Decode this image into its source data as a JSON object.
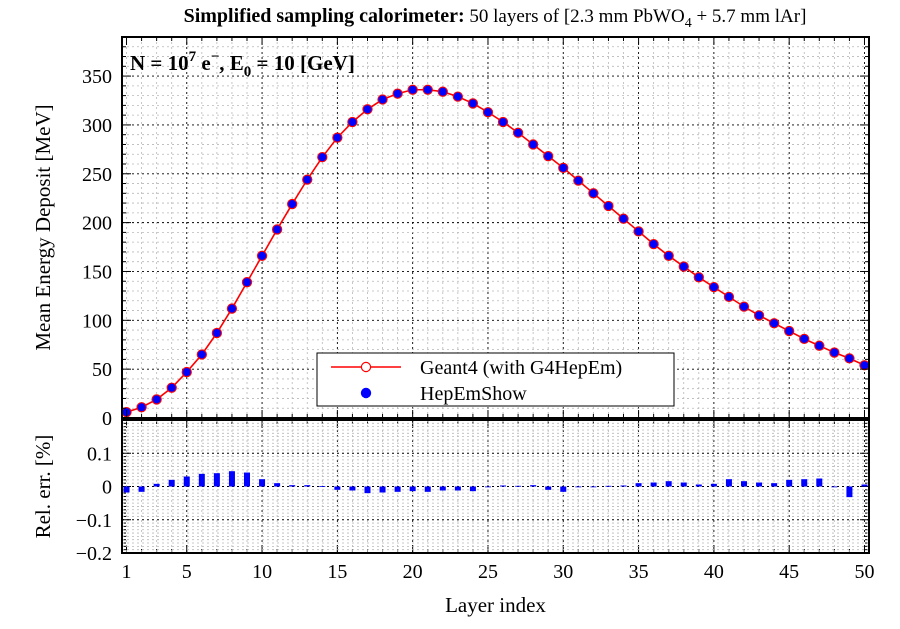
{
  "title": {
    "bold": "Simplified sampling calorimeter:",
    "normal_pre": " 50 layers of [2.3 mm PbWO",
    "sub": "4",
    "normal_post": " + 5.7 mm lAr]"
  },
  "annotation": {
    "p1": "N = 10",
    "sup": "7",
    "p2": " e",
    "sup2": "−",
    "p3": ", E",
    "sub": "0",
    "p4": " = 10 [GeV]"
  },
  "chart_data": [
    {
      "type": "line",
      "ylabel": "Mean Energy Deposit [MeV]",
      "xlim": [
        0.7,
        50.3
      ],
      "ylim": [
        0,
        390
      ],
      "yticks": [
        0,
        50,
        100,
        150,
        200,
        250,
        300,
        350
      ],
      "grid": true,
      "legend_position": "bottom-center",
      "x": [
        1,
        2,
        3,
        4,
        5,
        6,
        7,
        8,
        9,
        10,
        11,
        12,
        13,
        14,
        15,
        16,
        17,
        18,
        19,
        20,
        21,
        22,
        23,
        24,
        25,
        26,
        27,
        28,
        29,
        30,
        31,
        32,
        33,
        34,
        35,
        36,
        37,
        38,
        39,
        40,
        41,
        42,
        43,
        44,
        45,
        46,
        47,
        48,
        49,
        50
      ],
      "series": [
        {
          "name": "Geant4 (with G4HepEm)",
          "style": "line with open circles",
          "color": "#ff0000",
          "values": [
            6,
            11,
            19,
            31,
            47,
            65,
            87,
            112,
            139,
            166,
            193,
            219,
            244,
            267,
            287,
            303,
            316,
            326,
            332,
            336,
            336,
            334,
            329,
            322,
            313,
            303,
            292,
            280,
            268,
            256,
            243,
            230,
            217,
            204,
            191,
            178,
            166,
            155,
            144,
            134,
            124,
            114,
            105,
            97,
            89,
            81,
            74,
            67,
            61,
            54
          ]
        },
        {
          "name": "HepEmShow",
          "style": "filled circles",
          "color": "#0000ff",
          "values": [
            6,
            11,
            19,
            31,
            47,
            65,
            87,
            112,
            139,
            166,
            193,
            219,
            244,
            267,
            287,
            303,
            316,
            326,
            332,
            336,
            336,
            334,
            329,
            322,
            313,
            303,
            292,
            280,
            268,
            256,
            243,
            230,
            217,
            204,
            191,
            178,
            166,
            155,
            144,
            134,
            124,
            114,
            105,
            97,
            89,
            81,
            74,
            67,
            61,
            54
          ]
        }
      ]
    },
    {
      "type": "bar",
      "xlabel": "Layer index",
      "ylabel": "Rel. err. [%]",
      "xlim": [
        0.7,
        50.3
      ],
      "ylim": [
        -0.2,
        0.2
      ],
      "yticks": [
        -0.2,
        -0.1,
        0,
        0.1
      ],
      "xticks": [
        1,
        5,
        10,
        15,
        20,
        25,
        30,
        35,
        40,
        45,
        50
      ],
      "grid": true,
      "color": "#0000ff",
      "x": [
        1,
        2,
        3,
        4,
        5,
        6,
        7,
        8,
        9,
        10,
        11,
        12,
        13,
        14,
        15,
        16,
        17,
        18,
        19,
        20,
        21,
        22,
        23,
        24,
        25,
        26,
        27,
        28,
        29,
        30,
        31,
        32,
        33,
        34,
        35,
        36,
        37,
        38,
        39,
        40,
        41,
        42,
        43,
        44,
        45,
        46,
        47,
        48,
        49,
        50
      ],
      "values": [
        -0.018,
        -0.016,
        0.008,
        0.02,
        0.03,
        0.038,
        0.04,
        0.046,
        0.042,
        0.022,
        0.01,
        0.004,
        0.004,
        0.001,
        -0.01,
        -0.012,
        -0.02,
        -0.018,
        -0.016,
        -0.014,
        -0.016,
        -0.012,
        -0.012,
        -0.014,
        -0.002,
        0.003,
        0.002,
        0.004,
        -0.01,
        -0.016,
        -0.002,
        -0.001,
        0.002,
        0.003,
        0.01,
        0.012,
        0.016,
        0.012,
        0.006,
        0.008,
        0.022,
        0.016,
        0.012,
        0.01,
        0.02,
        0.022,
        0.024,
        -0.002,
        -0.032,
        0.006
      ]
    }
  ]
}
